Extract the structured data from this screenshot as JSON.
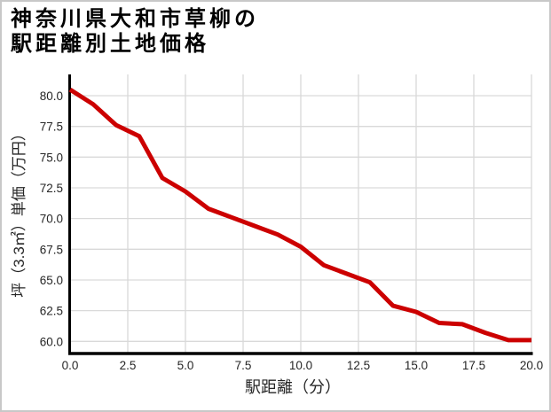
{
  "chart_data": {
    "type": "line",
    "title_lines": [
      "神奈川県大和市草柳の",
      "駅距離別土地価格"
    ],
    "xlabel": "駅距離（分）",
    "ylabel": "坪（3.3㎡）単価（万円）",
    "x": [
      0,
      1,
      2,
      3,
      4,
      5,
      6,
      7,
      8,
      9,
      10,
      11,
      12,
      13,
      14,
      15,
      16,
      17,
      18,
      19,
      20
    ],
    "values": [
      80.5,
      79.3,
      77.6,
      76.7,
      73.3,
      72.2,
      70.8,
      70.1,
      69.4,
      68.7,
      67.7,
      66.2,
      65.5,
      64.8,
      62.9,
      62.4,
      61.5,
      61.4,
      60.7,
      60.1,
      60.1
    ],
    "x_ticks": [
      0,
      2.5,
      5,
      7.5,
      10,
      12.5,
      15,
      17.5,
      20
    ],
    "x_tick_labels": [
      "0.0",
      "2.5",
      "5.0",
      "7.5",
      "10.0",
      "12.5",
      "15.0",
      "17.5",
      "20.0"
    ],
    "y_ticks": [
      60,
      62.5,
      65,
      67.5,
      70,
      72.5,
      75,
      77.5,
      80
    ],
    "y_tick_labels": [
      "60.0",
      "62.5",
      "65.0",
      "67.5",
      "70.0",
      "72.5",
      "75.0",
      "77.5",
      "80.0"
    ],
    "xlim": [
      0,
      20
    ],
    "ylim": [
      59,
      81.7
    ],
    "grid": true,
    "legend": "none",
    "colors": {
      "line": "#cc0000",
      "grid": "#d9d9d9",
      "axis": "#000000",
      "tick_text": "#262626",
      "title_text": "#000000",
      "border": "#c8c8c8",
      "background": "#ffffff"
    }
  }
}
